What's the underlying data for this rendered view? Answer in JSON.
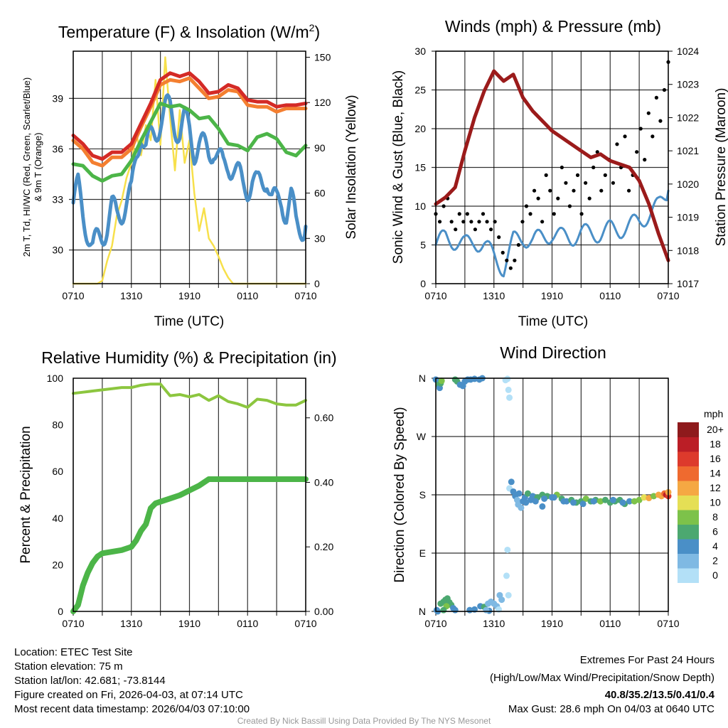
{
  "chart_data": [
    {
      "type": "line",
      "title": "Temperature (F) & Insolation (W/m2)",
      "title_main": "Temperature (F) & Insolation (W/m",
      "title_sup": "2",
      "title_end": ")",
      "xlabel": "Time (UTC)",
      "ylabel": "2m T, Td, HI/WC (Red, Green, Scarlet/Blue)",
      "ylabel2": "& 9m T (Orange)",
      "y2label": "Solar Insolation (Yellow)",
      "xticks": [
        "0710",
        "1310",
        "1910",
        "0110",
        "0710"
      ],
      "yticks": [
        "30",
        "33",
        "36",
        "39"
      ],
      "y2ticks": [
        "0",
        "30",
        "60",
        "90",
        "120",
        "150"
      ],
      "ylim": [
        28,
        41.8
      ],
      "y2lim": [
        0,
        154
      ],
      "hours_step_temp": 1,
      "hours_step_half": 0.5,
      "series": [
        {
          "name": "2m T",
          "color": "#d42a26",
          "values": [
            36.8,
            36.3,
            35.6,
            35.4,
            35.8,
            35.8,
            36.3,
            37.5,
            38.7,
            40.1,
            40.5,
            40.3,
            40.5,
            40.0,
            39.3,
            39.4,
            39.8,
            39.6,
            38.9,
            38.8,
            38.8,
            38.5,
            38.6,
            38.6,
            38.7
          ]
        },
        {
          "name": "9m T",
          "color": "#f47f30",
          "values": [
            36.5,
            36.0,
            35.2,
            35.0,
            35.5,
            35.5,
            36.0,
            37.3,
            38.5,
            39.8,
            40.1,
            40.0,
            40.2,
            39.6,
            39.0,
            39.1,
            39.5,
            39.4,
            38.6,
            38.5,
            38.5,
            38.2,
            38.4,
            38.4,
            38.4
          ]
        },
        {
          "name": "Td",
          "color": "#4cb548",
          "values": [
            35.1,
            35.0,
            34.4,
            34.1,
            34.4,
            34.5,
            35.3,
            36.5,
            37.6,
            38.7,
            38.5,
            38.6,
            38.3,
            37.8,
            37.9,
            37.2,
            36.3,
            36.2,
            35.9,
            36.7,
            36.9,
            36.6,
            35.8,
            35.6,
            36.2
          ]
        },
        {
          "name": "HI/WC",
          "color": "#4a8fc7",
          "values": [
            32.8,
            33.6,
            32.2,
            31.2,
            30.0,
            30.5,
            31.0,
            31.5,
            32.4,
            32.0,
            32.4,
            32.9,
            33.2,
            35.5,
            37.2,
            36.0,
            36.5,
            37.0,
            37.8,
            38.3,
            38.3,
            37.5,
            37.0,
            37.6,
            37.2,
            36.0,
            36.3,
            36.0,
            35.8,
            36.2,
            35.4,
            34.8,
            35.2,
            35.0,
            34.4,
            33.8,
            33.8,
            34.2,
            33.7,
            34.0,
            34.5,
            33.0,
            32.7,
            33.0,
            32.3,
            33.0,
            31.5,
            31.5,
            31.4
          ]
        },
        {
          "name": "Solar Insolation",
          "color": "#f7e04b",
          "axis": "right",
          "values": [
            0,
            0,
            0,
            0,
            0,
            0,
            2,
            15,
            25,
            45,
            55,
            70,
            80,
            100,
            85,
            105,
            95,
            135,
            92,
            150,
            110,
            75,
            115,
            80,
            95,
            60,
            35,
            50,
            30,
            25,
            18,
            10,
            4,
            0,
            0,
            0,
            0,
            0,
            0,
            0,
            0,
            0,
            0,
            0,
            0,
            0,
            0,
            0,
            0
          ]
        }
      ]
    },
    {
      "type": "line",
      "title": "Winds (mph) & Pressure (mb)",
      "xlabel": "Time (UTC)",
      "ylabel": "Sonic Wind & Gust (Blue, Black)",
      "y2label": "Station Pressure (Maroon)",
      "xticks": [
        "0710",
        "1310",
        "1910",
        "0110",
        "0710"
      ],
      "yticks": [
        "0",
        "5",
        "10",
        "15",
        "20",
        "25",
        "30"
      ],
      "y2ticks": [
        "1017",
        "1018",
        "1019",
        "1020",
        "1021",
        "1022",
        "1023",
        "1024"
      ],
      "ylim": [
        0,
        30
      ],
      "y2lim": [
        1017,
        1024
      ],
      "series": [
        {
          "name": "Sonic Wind",
          "color": "#4a8fc7",
          "values": [
            5,
            6,
            5.5,
            5,
            5.5,
            5,
            3.5,
            2,
            5.5,
            6,
            5.5,
            6,
            6.5,
            6,
            6,
            6.5,
            6.5,
            6.5,
            7,
            7,
            7.5,
            8,
            9,
            10,
            12
          ]
        },
        {
          "name": "Gust",
          "color": "#000000",
          "type": "scatter",
          "values": [
            9,
            8,
            10,
            11,
            8,
            7,
            9,
            8,
            9,
            8,
            7,
            8,
            9,
            8,
            7,
            8,
            6,
            4,
            3,
            2,
            3,
            5,
            8,
            10,
            9,
            12,
            11,
            8,
            14,
            12,
            9,
            11,
            15,
            13,
            10,
            12,
            14,
            9,
            13,
            11,
            15,
            17,
            12,
            14,
            16,
            13,
            18,
            15,
            19,
            12,
            14,
            17,
            20,
            16,
            22,
            19,
            24,
            21,
            25,
            28.6
          ]
        },
        {
          "name": "Station Pressure",
          "color": "#9b1b1b",
          "axis": "right",
          "values": [
            1019.4,
            1019.6,
            1019.9,
            1021.0,
            1022.0,
            1022.8,
            1023.4,
            1023.1,
            1023.3,
            1022.6,
            1022.2,
            1021.9,
            1021.6,
            1021.4,
            1021.2,
            1021.0,
            1020.8,
            1020.9,
            1020.7,
            1020.6,
            1020.5,
            1020.1,
            1019.4,
            1018.5,
            1017.7
          ]
        }
      ]
    },
    {
      "type": "line",
      "title": "Relative Humidity (%) & Precipitation (in)",
      "xlabel": "",
      "ylabel": "Percent & Precipitation",
      "xticks": [
        "0710",
        "1310",
        "1910",
        "0110",
        "0710"
      ],
      "yticks": [
        "0",
        "20",
        "40",
        "60",
        "80",
        "100"
      ],
      "y2ticks": [
        "0.00",
        "0.20",
        "0.40",
        "0.60"
      ],
      "ylim": [
        0,
        100
      ],
      "y2lim": [
        0,
        0.7228
      ],
      "series": [
        {
          "name": "Relative Humidity",
          "color": "#8cc63f",
          "values": [
            93.5,
            94,
            94.5,
            95,
            95.5,
            96,
            96,
            97,
            97.5,
            97.5,
            92.5,
            93,
            92,
            93,
            90.5,
            92.5,
            90,
            89,
            87.5,
            91,
            90.5,
            89,
            88.5,
            88.5,
            90.5
          ]
        },
        {
          "name": "Precipitation",
          "color": "#4cb548",
          "axis": "right",
          "hours": [
            0,
            0.5,
            1,
            1.5,
            2,
            2.5,
            3,
            4,
            5,
            6,
            6.5,
            7,
            7.5,
            8,
            8.5,
            9,
            10,
            11,
            12,
            13,
            14,
            24
          ],
          "values": [
            0,
            0.02,
            0.08,
            0.12,
            0.15,
            0.17,
            0.18,
            0.185,
            0.19,
            0.2,
            0.22,
            0.25,
            0.27,
            0.32,
            0.335,
            0.34,
            0.35,
            0.36,
            0.375,
            0.39,
            0.41,
            0.41
          ]
        }
      ]
    },
    {
      "type": "scatter",
      "title": "Wind Direction",
      "xlabel": "",
      "ylabel": "Direction (Colored By Speed)",
      "xticks": [
        "0710",
        "1310",
        "1910",
        "0110",
        "0710"
      ],
      "yticks": [
        "N",
        "E",
        "S",
        "W",
        "N"
      ],
      "ylim": [
        0,
        360
      ],
      "legend": {
        "title": "mph",
        "labels": [
          "0",
          "2",
          "4",
          "6",
          "8",
          "10",
          "12",
          "14",
          "16",
          "18",
          "20+"
        ],
        "colors": [
          "#b3e0f7",
          "#7fb9e3",
          "#4a8fc7",
          "#4ca870",
          "#7dc24a",
          "#e5df55",
          "#f5a843",
          "#ef6a2f",
          "#dd3a2c",
          "#bb1e26",
          "#8e1a1c"
        ],
        "placement": "right"
      },
      "points": [
        [
          0,
          358,
          4
        ],
        [
          0.1,
          2,
          4
        ],
        [
          0.3,
          350,
          6
        ],
        [
          0.4,
          345,
          4
        ],
        [
          0.5,
          352,
          6
        ],
        [
          0.6,
          356,
          8
        ],
        [
          0.2,
          0,
          4
        ],
        [
          0.5,
          12,
          6
        ],
        [
          0.8,
          15,
          6
        ],
        [
          1,
          18,
          6
        ],
        [
          1.2,
          20,
          7
        ],
        [
          1.4,
          14,
          6
        ],
        [
          1.6,
          10,
          6
        ],
        [
          1.8,
          5,
          4
        ],
        [
          2,
          2,
          4
        ],
        [
          1.1,
          8,
          8
        ],
        [
          0.8,
          2,
          6
        ],
        [
          2,
          358,
          6
        ],
        [
          2.2,
          355,
          6
        ],
        [
          2.5,
          350,
          5
        ],
        [
          2.8,
          348,
          4
        ],
        [
          3,
          355,
          4
        ],
        [
          3.3,
          358,
          4
        ],
        [
          3.6,
          358,
          5
        ],
        [
          4,
          359,
          4
        ],
        [
          4.5,
          358,
          4
        ],
        [
          4.8,
          360,
          4
        ],
        [
          5.5,
          1,
          4
        ],
        [
          3.5,
          2,
          4
        ],
        [
          4,
          3,
          4
        ],
        [
          4.6,
          8,
          4
        ],
        [
          5,
          7,
          6
        ],
        [
          5.4,
          12,
          3
        ],
        [
          5.2,
          2,
          3
        ],
        [
          5.7,
          15,
          2
        ],
        [
          6,
          12,
          2
        ],
        [
          6.3,
          8,
          2
        ],
        [
          6.5,
          3,
          1
        ],
        [
          6.6,
          25,
          2
        ],
        [
          6.8,
          18,
          2
        ],
        [
          7.2,
          357,
          1
        ],
        [
          7.4,
          359,
          1
        ],
        [
          7.5,
          342,
          1
        ],
        [
          7.6,
          330,
          1
        ],
        [
          7.5,
          25,
          1
        ],
        [
          7.3,
          55,
          1
        ],
        [
          7.4,
          95,
          1
        ],
        [
          7.6,
          190,
          1
        ],
        [
          7.8,
          200,
          4
        ],
        [
          8,
          185,
          4
        ],
        [
          8.2,
          178,
          4
        ],
        [
          8.4,
          172,
          3
        ],
        [
          8.5,
          165,
          2
        ],
        [
          8.8,
          160,
          2
        ],
        [
          9,
          170,
          4
        ],
        [
          9.2,
          176,
          4
        ],
        [
          9.5,
          182,
          6
        ],
        [
          10,
          178,
          5
        ],
        [
          10.5,
          176,
          6
        ],
        [
          11,
          180,
          7
        ],
        [
          11.5,
          178,
          6
        ],
        [
          11,
          162,
          4
        ],
        [
          12,
          176,
          5
        ],
        [
          12.5,
          180,
          8
        ],
        [
          13,
          174,
          6
        ],
        [
          13.5,
          170,
          5
        ],
        [
          14,
          172,
          6
        ],
        [
          14.5,
          168,
          6
        ],
        [
          15,
          170,
          6
        ],
        [
          15.5,
          174,
          8
        ],
        [
          16,
          170,
          7
        ],
        [
          16.5,
          172,
          6
        ],
        [
          17,
          170,
          8
        ],
        [
          17.5,
          172,
          7
        ],
        [
          18,
          168,
          6
        ],
        [
          18.5,
          170,
          6
        ],
        [
          19,
          172,
          6
        ],
        [
          19.5,
          166,
          6
        ],
        [
          20,
          170,
          4
        ],
        [
          20.5,
          170,
          8
        ],
        [
          21,
          172,
          8
        ],
        [
          21.5,
          176,
          10
        ],
        [
          22,
          175,
          12
        ],
        [
          22.5,
          178,
          8
        ],
        [
          23,
          180,
          13
        ],
        [
          23.3,
          178,
          12
        ],
        [
          23.6,
          182,
          14
        ],
        [
          23.8,
          180,
          18
        ],
        [
          24,
          178,
          16
        ],
        [
          24,
          184,
          13
        ],
        [
          8.6,
          182,
          4
        ],
        [
          9.3,
          168,
          4
        ],
        [
          9.8,
          172,
          4
        ],
        [
          10.3,
          170,
          4
        ],
        [
          11.2,
          174,
          4
        ],
        [
          12.2,
          176,
          4
        ],
        [
          13.2,
          170,
          4
        ],
        [
          14.2,
          168,
          4
        ],
        [
          15.2,
          166,
          4
        ],
        [
          16.3,
          170,
          4
        ],
        [
          18.3,
          172,
          4
        ],
        [
          19.3,
          168,
          4
        ]
      ]
    }
  ],
  "footer": {
    "left": [
      "Location: ETEC Test Site",
      "Station elevation: 75 m",
      "Station lat/lon: 42.681; -73.8144",
      "Figure created on Fri, 2026-04-03, at 07:14 UTC",
      "Most recent data timestamp: 2026/04/03 07:10:00"
    ],
    "right_title": "Extremes For Past 24 Hours",
    "right_sub": "(High/Low/Max Wind/Precipitation/Snow Depth)",
    "extremes": "40.8/35.2/13.5/0.41/0.4",
    "extremes_color": "#d42a26",
    "max_gust": "Max Gust: 28.6 mph On 04/03 at 0640 UTC",
    "credit": "Created By Nick Bassill Using Data Provided By The NYS Mesonet"
  }
}
